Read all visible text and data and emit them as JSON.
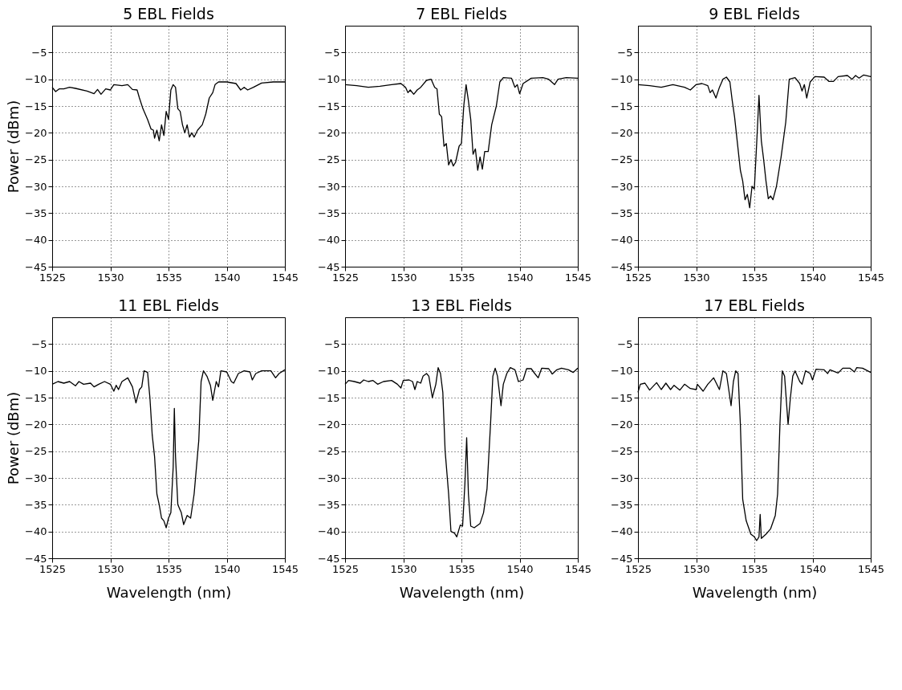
{
  "chart_data": [
    {
      "type": "line",
      "title": "5 EBL Fields",
      "ylabel": "Power (dBm)",
      "color": "#000000",
      "xlim": [
        1525,
        1545
      ],
      "ylim": [
        -45,
        0
      ],
      "xticks": [
        1525,
        1530,
        1535,
        1540,
        1545
      ],
      "yticks": [
        -45,
        -40,
        -35,
        -30,
        -25,
        -20,
        -15,
        -10,
        -5
      ],
      "grid": true,
      "x": [
        1525,
        1525.3,
        1525.6,
        1526,
        1526.5,
        1527,
        1528,
        1528.6,
        1528.9,
        1529.2,
        1529.6,
        1530,
        1530.3,
        1531,
        1531.5,
        1531.9,
        1532.3,
        1532.5,
        1532.8,
        1533.2,
        1533.5,
        1533.7,
        1533.8,
        1534,
        1534.2,
        1534.4,
        1534.6,
        1534.8,
        1535,
        1535.2,
        1535.4,
        1535.6,
        1535.8,
        1536,
        1536.2,
        1536.4,
        1536.6,
        1536.8,
        1537,
        1537.2,
        1537.5,
        1537.9,
        1538.2,
        1538.5,
        1538.8,
        1539,
        1539.3,
        1540,
        1540.8,
        1541.2,
        1541.5,
        1541.8,
        1542.3,
        1543,
        1544,
        1545
      ],
      "values": [
        -11.5,
        -12.3,
        -11.8,
        -11.8,
        -11.5,
        -11.7,
        -12.2,
        -12.7,
        -11.9,
        -12.8,
        -11.8,
        -12,
        -11,
        -11.2,
        -11,
        -11.9,
        -12,
        -13.5,
        -15.5,
        -17.5,
        -19.3,
        -19.5,
        -21,
        -19.5,
        -21.5,
        -18.5,
        -20.5,
        -16,
        -17.5,
        -12,
        -11,
        -11.5,
        -15.5,
        -16,
        -18.5,
        -20,
        -18.5,
        -20.8,
        -20,
        -20.8,
        -19.5,
        -18.5,
        -16.5,
        -13.5,
        -12.5,
        -11,
        -10.5,
        -10.5,
        -10.8,
        -12,
        -11.5,
        -12,
        -11.5,
        -10.7,
        -10.5,
        -10.5
      ]
    },
    {
      "type": "line",
      "title": "7 EBL Fields",
      "color": "#000000",
      "xlim": [
        1525,
        1545
      ],
      "ylim": [
        -45,
        0
      ],
      "xticks": [
        1525,
        1530,
        1535,
        1540,
        1545
      ],
      "yticks": [
        -45,
        -40,
        -35,
        -30,
        -25,
        -20,
        -15,
        -10,
        -5
      ],
      "grid": true,
      "x": [
        1525,
        1526,
        1527,
        1528,
        1529,
        1529.8,
        1530.2,
        1530.4,
        1530.6,
        1530.9,
        1531.2,
        1531.5,
        1532,
        1532.4,
        1532.7,
        1532.9,
        1533.1,
        1533.3,
        1533.5,
        1533.7,
        1533.9,
        1534.1,
        1534.3,
        1534.5,
        1534.8,
        1535,
        1535.2,
        1535.4,
        1535.6,
        1535.8,
        1536,
        1536.2,
        1536.4,
        1536.6,
        1536.8,
        1537,
        1537.3,
        1537.6,
        1538,
        1538.3,
        1538.6,
        1539.3,
        1539.6,
        1539.8,
        1540,
        1540.3,
        1541,
        1542,
        1542.5,
        1543,
        1543.3,
        1544,
        1545
      ],
      "values": [
        -11,
        -11.2,
        -11.5,
        -11.3,
        -11,
        -10.8,
        -11.5,
        -12.5,
        -12,
        -12.8,
        -12,
        -11.5,
        -10.2,
        -10,
        -11.5,
        -11.8,
        -16.5,
        -17,
        -22.5,
        -22,
        -26,
        -25,
        -26.2,
        -25.5,
        -22.5,
        -22,
        -15,
        -11,
        -14,
        -17.5,
        -24,
        -23,
        -27,
        -24.5,
        -26.8,
        -23.5,
        -23.5,
        -18.5,
        -15,
        -10.5,
        -9.7,
        -9.8,
        -11.5,
        -11,
        -12.7,
        -10.8,
        -9.8,
        -9.7,
        -10,
        -11,
        -10,
        -9.7,
        -9.8
      ]
    },
    {
      "type": "line",
      "title": "9 EBL Fields",
      "color": "#000000",
      "xlim": [
        1525,
        1545
      ],
      "ylim": [
        -45,
        0
      ],
      "xticks": [
        1525,
        1530,
        1535,
        1540,
        1545
      ],
      "yticks": [
        -45,
        -40,
        -35,
        -30,
        -25,
        -20,
        -15,
        -10,
        -5
      ],
      "grid": true,
      "x": [
        1525,
        1526,
        1527,
        1528,
        1529,
        1529.5,
        1530,
        1530.5,
        1531,
        1531.2,
        1531.4,
        1531.7,
        1532,
        1532.3,
        1532.6,
        1532.9,
        1533.1,
        1533.3,
        1533.6,
        1533.8,
        1534,
        1534.2,
        1534.4,
        1534.6,
        1534.8,
        1535,
        1535.2,
        1535.4,
        1535.6,
        1535.8,
        1536,
        1536.2,
        1536.4,
        1536.6,
        1536.9,
        1537.3,
        1537.7,
        1538,
        1538.5,
        1538.9,
        1539.1,
        1539.3,
        1539.5,
        1539.8,
        1540.2,
        1541,
        1541.4,
        1541.8,
        1542.2,
        1543,
        1543.4,
        1543.7,
        1544,
        1544.4,
        1545
      ],
      "values": [
        -11,
        -11.2,
        -11.5,
        -11,
        -11.5,
        -12,
        -11,
        -10.8,
        -11.2,
        -12.5,
        -12,
        -13.5,
        -11.5,
        -10,
        -9.6,
        -10.5,
        -14,
        -17,
        -23,
        -27,
        -29,
        -32.5,
        -31.5,
        -34,
        -30,
        -30.5,
        -22,
        -13,
        -21.5,
        -25,
        -29,
        -32.3,
        -31.8,
        -32.5,
        -30,
        -24.5,
        -18,
        -10,
        -9.7,
        -10.8,
        -12.2,
        -11,
        -13.5,
        -10.5,
        -9.5,
        -9.6,
        -10.4,
        -10.4,
        -9.5,
        -9.3,
        -10,
        -9.3,
        -9.8,
        -9.2,
        -9.5
      ]
    },
    {
      "type": "line",
      "title": "11 EBL Fields",
      "xlabel": "Wavelength (nm)",
      "ylabel": "Power (dBm)",
      "color": "#000000",
      "xlim": [
        1525,
        1545
      ],
      "ylim": [
        -45,
        0
      ],
      "xticks": [
        1525,
        1530,
        1535,
        1540,
        1545
      ],
      "yticks": [
        -45,
        -40,
        -35,
        -30,
        -25,
        -20,
        -15,
        -10,
        -5
      ],
      "grid": true,
      "x": [
        1525,
        1525.5,
        1526,
        1526.5,
        1527,
        1527.3,
        1527.7,
        1528.3,
        1528.6,
        1529,
        1529.5,
        1530,
        1530.3,
        1530.5,
        1530.7,
        1531,
        1531.5,
        1531.9,
        1532.2,
        1532.5,
        1532.7,
        1532.9,
        1533.2,
        1533.4,
        1533.6,
        1533.8,
        1534,
        1534.2,
        1534.4,
        1534.6,
        1534.8,
        1535,
        1535.2,
        1535.4,
        1535.5,
        1535.6,
        1535.8,
        1536.1,
        1536.3,
        1536.6,
        1536.9,
        1537.2,
        1537.6,
        1537.8,
        1538,
        1538.3,
        1538.6,
        1538.8,
        1539.1,
        1539.3,
        1539.5,
        1540,
        1540.4,
        1540.6,
        1541,
        1541.5,
        1542,
        1542.2,
        1542.5,
        1543,
        1543.8,
        1544.2,
        1544.5,
        1545
      ],
      "values": [
        -12.5,
        -12,
        -12.3,
        -12,
        -12.8,
        -12,
        -12.5,
        -12.3,
        -13,
        -12.5,
        -12,
        -12.5,
        -13.8,
        -12.7,
        -13.5,
        -12,
        -11.3,
        -13,
        -16,
        -13.5,
        -13,
        -10,
        -10.3,
        -15,
        -22,
        -26,
        -33,
        -35,
        -37.5,
        -38,
        -39.3,
        -37.5,
        -36.5,
        -28,
        -17,
        -26,
        -35,
        -36.5,
        -38.7,
        -37,
        -37.5,
        -33,
        -23,
        -12,
        -10,
        -11,
        -12.7,
        -15.5,
        -12,
        -13,
        -10,
        -10.2,
        -12,
        -12.3,
        -10.5,
        -10,
        -10.2,
        -11.7,
        -10.5,
        -10,
        -10,
        -11.3,
        -10.5,
        -9.8
      ]
    },
    {
      "type": "line",
      "title": "13 EBL Fields",
      "xlabel": "Wavelength (nm)",
      "color": "#000000",
      "xlim": [
        1525,
        1545
      ],
      "ylim": [
        -45,
        0
      ],
      "xticks": [
        1525,
        1530,
        1535,
        1540,
        1545
      ],
      "yticks": [
        -45,
        -40,
        -35,
        -30,
        -25,
        -20,
        -15,
        -10,
        -5
      ],
      "grid": true,
      "x": [
        1525,
        1525.3,
        1525.8,
        1526.3,
        1526.6,
        1527,
        1527.4,
        1527.8,
        1528.3,
        1529,
        1529.5,
        1529.8,
        1530,
        1530.5,
        1530.8,
        1531,
        1531.2,
        1531.5,
        1531.7,
        1532,
        1532.2,
        1532.5,
        1532.8,
        1533,
        1533.2,
        1533.4,
        1533.6,
        1533.9,
        1534.1,
        1534.4,
        1534.6,
        1534.9,
        1535.1,
        1535.3,
        1535.45,
        1535.6,
        1535.8,
        1536.1,
        1536.6,
        1536.9,
        1537.2,
        1537.5,
        1537.7,
        1537.9,
        1538.1,
        1538.4,
        1538.6,
        1538.9,
        1539.2,
        1539.6,
        1539.9,
        1540.3,
        1540.6,
        1541,
        1541.3,
        1541.6,
        1541.9,
        1542.5,
        1542.8,
        1543.2,
        1543.6,
        1544.2,
        1544.6,
        1545
      ],
      "values": [
        -12.5,
        -11.8,
        -12,
        -12.3,
        -11.7,
        -12,
        -11.8,
        -12.5,
        -12,
        -11.8,
        -12.5,
        -13.2,
        -11.8,
        -11.7,
        -12,
        -13.5,
        -12,
        -12.3,
        -11,
        -10.5,
        -11,
        -15,
        -12.5,
        -9.4,
        -10.5,
        -14,
        -25,
        -33,
        -40,
        -40.3,
        -41,
        -38.8,
        -39,
        -31,
        -22.5,
        -33,
        -39,
        -39.3,
        -38.5,
        -36.5,
        -32,
        -20,
        -11,
        -9.5,
        -11,
        -16.5,
        -12.5,
        -10.5,
        -9.4,
        -9.8,
        -12,
        -11.7,
        -9.6,
        -9.6,
        -10.5,
        -11.3,
        -9.5,
        -9.6,
        -10.6,
        -9.8,
        -9.5,
        -9.8,
        -10.3,
        -9.5
      ]
    },
    {
      "type": "line",
      "title": "17 EBL Fields",
      "xlabel": "Wavelength (nm)",
      "color": "#000000",
      "xlim": [
        1525,
        1545
      ],
      "ylim": [
        -45,
        0
      ],
      "xticks": [
        1525,
        1530,
        1535,
        1540,
        1545
      ],
      "yticks": [
        -45,
        -40,
        -35,
        -30,
        -25,
        -20,
        -15,
        -10,
        -5
      ],
      "grid": true,
      "x": [
        1525,
        1525.2,
        1525.6,
        1526,
        1526.6,
        1527,
        1527.4,
        1527.8,
        1528.1,
        1528.6,
        1529,
        1529.5,
        1530,
        1530.1,
        1530.6,
        1531,
        1531.5,
        1532,
        1532.3,
        1532.6,
        1533,
        1533.2,
        1533.4,
        1533.6,
        1533.8,
        1534,
        1534.3,
        1534.7,
        1535,
        1535.2,
        1535.4,
        1535.5,
        1535.6,
        1536,
        1536.4,
        1536.8,
        1537,
        1537.2,
        1537.4,
        1537.6,
        1537.9,
        1538.1,
        1538.3,
        1538.5,
        1538.9,
        1539.1,
        1539.4,
        1539.8,
        1540,
        1540.3,
        1541,
        1541.3,
        1541.5,
        1542.2,
        1542.6,
        1543.2,
        1543.6,
        1543.8,
        1544.3,
        1545
      ],
      "values": [
        -14,
        -12.5,
        -12.3,
        -13.6,
        -12.2,
        -13.5,
        -12.3,
        -13.5,
        -12.7,
        -13.6,
        -12.5,
        -13.3,
        -13.5,
        -12.5,
        -13.8,
        -12.5,
        -11.3,
        -13.5,
        -10,
        -10.5,
        -16.5,
        -12,
        -10,
        -10.5,
        -20,
        -34,
        -38,
        -40.5,
        -41,
        -41.7,
        -41,
        -36.8,
        -41.3,
        -40.5,
        -39.5,
        -37,
        -33,
        -20,
        -10,
        -11,
        -20,
        -15,
        -11,
        -10,
        -12,
        -12.5,
        -10,
        -10.5,
        -11.7,
        -9.7,
        -9.8,
        -10.5,
        -9.8,
        -10.4,
        -9.5,
        -9.5,
        -10.2,
        -9.4,
        -9.5,
        -10.3
      ]
    }
  ]
}
